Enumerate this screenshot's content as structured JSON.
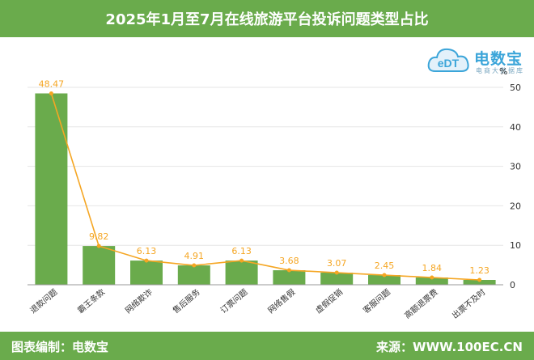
{
  "header": {
    "title": "2025年1月至7月在线旅游平台投诉问题类型占比"
  },
  "logo": {
    "brand": "电数宝",
    "sub": "电商大数据库",
    "mark": "eDT"
  },
  "footer": {
    "left": "图表编制：电数宝",
    "right": "来源：WWW.100EC.CN"
  },
  "colors": {
    "bar": "#6aab4c",
    "line": "#f5a623",
    "header": "#6aab4c",
    "label": "#f5a623"
  },
  "chart_data": {
    "type": "bar",
    "categories": [
      "退款问题",
      "霸王条款",
      "网络欺诈",
      "售后服务",
      "订票问题",
      "网络售假",
      "虚假促销",
      "客服问题",
      "高额退票费",
      "出票不及时"
    ],
    "values": [
      48.47,
      9.82,
      6.13,
      4.91,
      6.13,
      3.68,
      3.07,
      2.45,
      1.84,
      1.23
    ],
    "data_labels": [
      "48.47",
      "9.82",
      "6.13",
      "4.91",
      "6.13",
      "3.68",
      "3.07",
      "2.45",
      "1.84",
      "1.23"
    ],
    "overlay_line": true,
    "yunit": "%",
    "ylim": [
      0,
      50
    ],
    "yticks": [
      "0",
      "10",
      "20",
      "30",
      "40",
      "50"
    ],
    "grid": true,
    "legend": "none"
  }
}
